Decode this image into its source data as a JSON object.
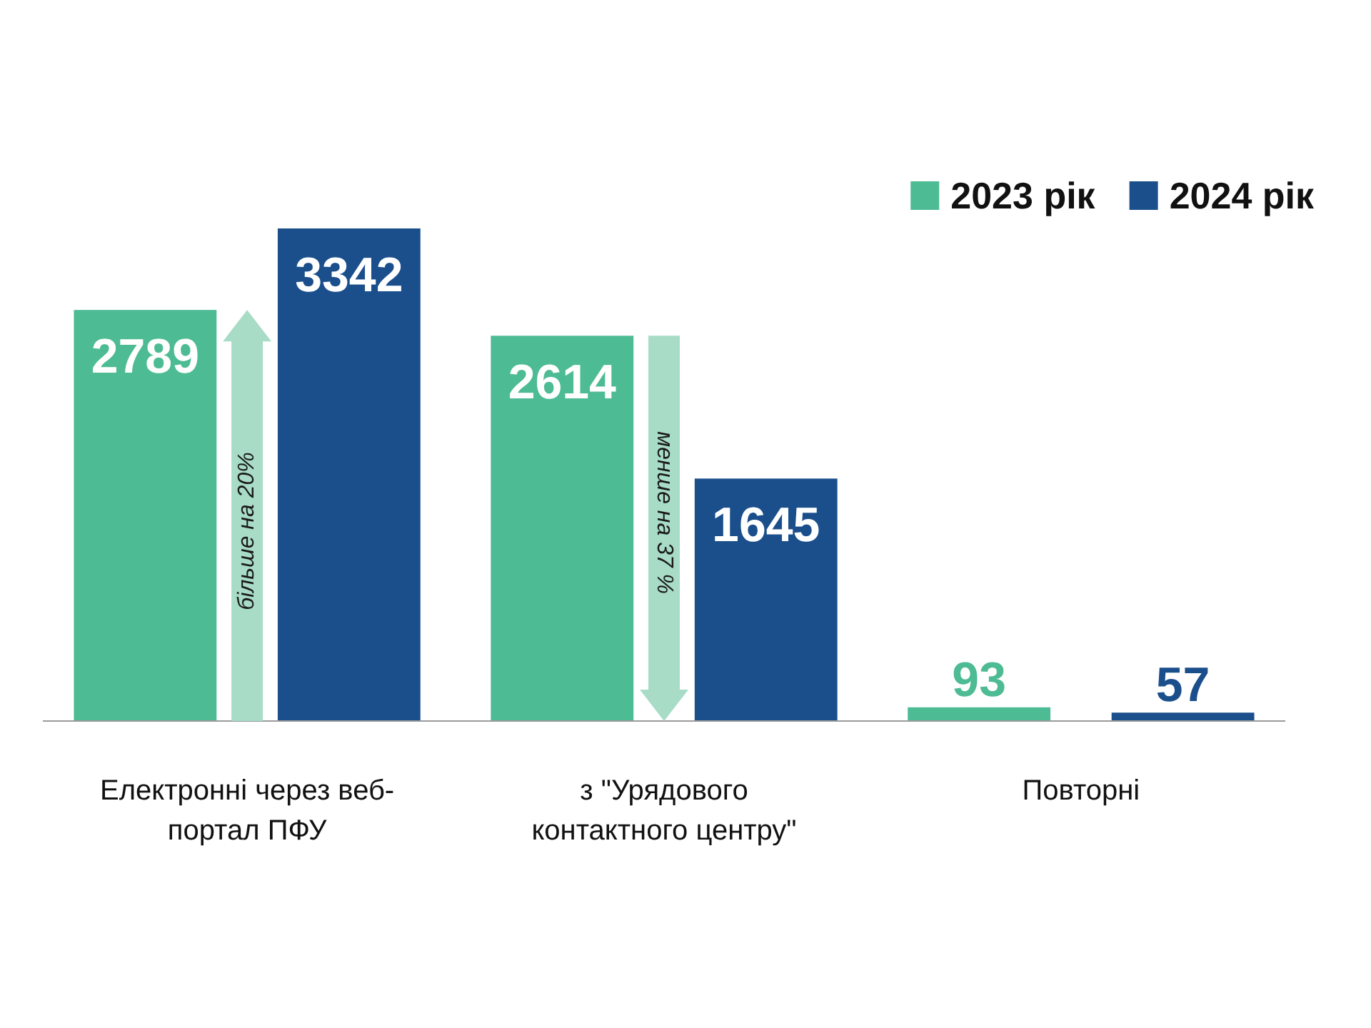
{
  "chart_data": {
    "type": "bar",
    "categories": [
      "Електронні через веб-портал ПФУ",
      "з \"Урядового контактного центру\"",
      "Повторні"
    ],
    "series": [
      {
        "name": "2023 рік",
        "color": "#4dbb94",
        "values": [
          2789,
          2614,
          93
        ]
      },
      {
        "name": "2024 рік",
        "color": "#1b4f8c",
        "values": [
          3342,
          1645,
          57
        ]
      }
    ],
    "data_labels": true,
    "legend": "top right",
    "annotations": [
      "більше на 20%",
      "менше на 37 %"
    ]
  }
}
